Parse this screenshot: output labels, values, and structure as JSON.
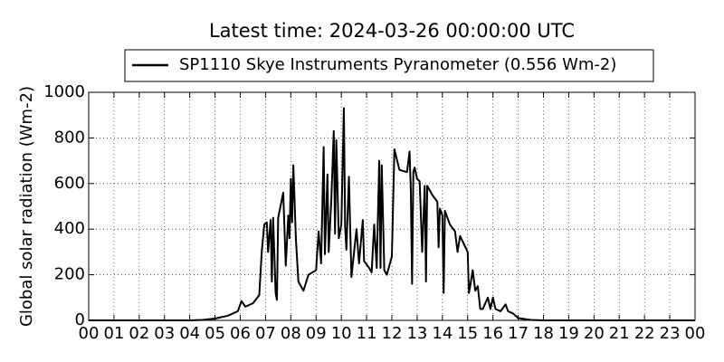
{
  "chart_data": {
    "type": "line",
    "title": "Latest time: 2024-03-26 00:00:00 UTC",
    "y_label": "Global solar radiation (Wm-2)",
    "x": [
      0,
      4,
      4.5,
      5,
      5.5,
      5.9,
      6.05,
      6.2,
      6.5,
      6.75,
      6.85,
      6.95,
      7.05,
      7.1,
      7.2,
      7.25,
      7.3,
      7.4,
      7.45,
      7.5,
      7.7,
      7.8,
      7.9,
      7.95,
      8.0,
      8.05,
      8.1,
      8.2,
      8.3,
      8.5,
      8.7,
      9.0,
      9.1,
      9.2,
      9.3,
      9.35,
      9.45,
      9.5,
      9.6,
      9.7,
      9.75,
      9.8,
      9.9,
      10.0,
      10.1,
      10.15,
      10.2,
      10.3,
      10.4,
      10.6,
      10.7,
      10.85,
      10.9,
      11.1,
      11.2,
      11.3,
      11.4,
      11.5,
      11.55,
      11.6,
      11.7,
      11.8,
      12.0,
      12.1,
      12.3,
      12.6,
      12.7,
      12.75,
      12.8,
      12.85,
      12.9,
      13.0,
      13.1,
      13.2,
      13.3,
      13.35,
      13.4,
      13.6,
      13.8,
      13.85,
      13.9,
      14.0,
      14.05,
      14.1,
      14.3,
      14.5,
      14.6,
      14.7,
      15.0,
      15.05,
      15.1,
      15.2,
      15.3,
      15.4,
      15.5,
      15.6,
      15.8,
      15.9,
      16.0,
      16.1,
      16.3,
      16.5,
      16.6,
      16.8,
      17.0,
      17.5,
      18,
      24
    ],
    "series": [
      {
        "name": "SP1110 Skye Instruments Pyranometer (0.556 Wm-2)",
        "color": "#000000",
        "values": [
          0,
          0,
          2,
          8,
          20,
          40,
          85,
          60,
          75,
          110,
          300,
          420,
          430,
          300,
          440,
          170,
          450,
          120,
          90,
          450,
          560,
          240,
          460,
          360,
          620,
          430,
          680,
          360,
          170,
          130,
          200,
          220,
          390,
          250,
          760,
          290,
          640,
          300,
          520,
          830,
          380,
          790,
          360,
          420,
          930,
          410,
          310,
          630,
          190,
          400,
          250,
          440,
          260,
          230,
          210,
          420,
          230,
          700,
          230,
          680,
          220,
          200,
          280,
          750,
          660,
          650,
          740,
          570,
          160,
          650,
          670,
          620,
          610,
          300,
          590,
          170,
          590,
          550,
          520,
          320,
          490,
          460,
          120,
          480,
          420,
          390,
          300,
          370,
          300,
          120,
          150,
          220,
          130,
          150,
          50,
          50,
          100,
          50,
          100,
          50,
          40,
          70,
          40,
          30,
          10,
          2,
          0,
          0
        ]
      }
    ],
    "xlim": [
      0,
      24
    ],
    "xticks": [
      {
        "value": 0,
        "label": "00"
      },
      {
        "value": 1,
        "label": "01"
      },
      {
        "value": 2,
        "label": "02"
      },
      {
        "value": 3,
        "label": "03"
      },
      {
        "value": 4,
        "label": "04"
      },
      {
        "value": 5,
        "label": "05"
      },
      {
        "value": 6,
        "label": "06"
      },
      {
        "value": 7,
        "label": "07"
      },
      {
        "value": 8,
        "label": "08"
      },
      {
        "value": 9,
        "label": "09"
      },
      {
        "value": 10,
        "label": "10"
      },
      {
        "value": 11,
        "label": "11"
      },
      {
        "value": 12,
        "label": "12"
      },
      {
        "value": 13,
        "label": "13"
      },
      {
        "value": 14,
        "label": "14"
      },
      {
        "value": 15,
        "label": "15"
      },
      {
        "value": 16,
        "label": "16"
      },
      {
        "value": 17,
        "label": "17"
      },
      {
        "value": 18,
        "label": "18"
      },
      {
        "value": 19,
        "label": "19"
      },
      {
        "value": 20,
        "label": "20"
      },
      {
        "value": 21,
        "label": "21"
      },
      {
        "value": 22,
        "label": "22"
      },
      {
        "value": 23,
        "label": "23"
      },
      {
        "value": 24,
        "label": "00"
      }
    ],
    "ylim": [
      0,
      1000
    ],
    "yticks": [
      0,
      200,
      400,
      600,
      800,
      1000
    ],
    "grid": true
  }
}
